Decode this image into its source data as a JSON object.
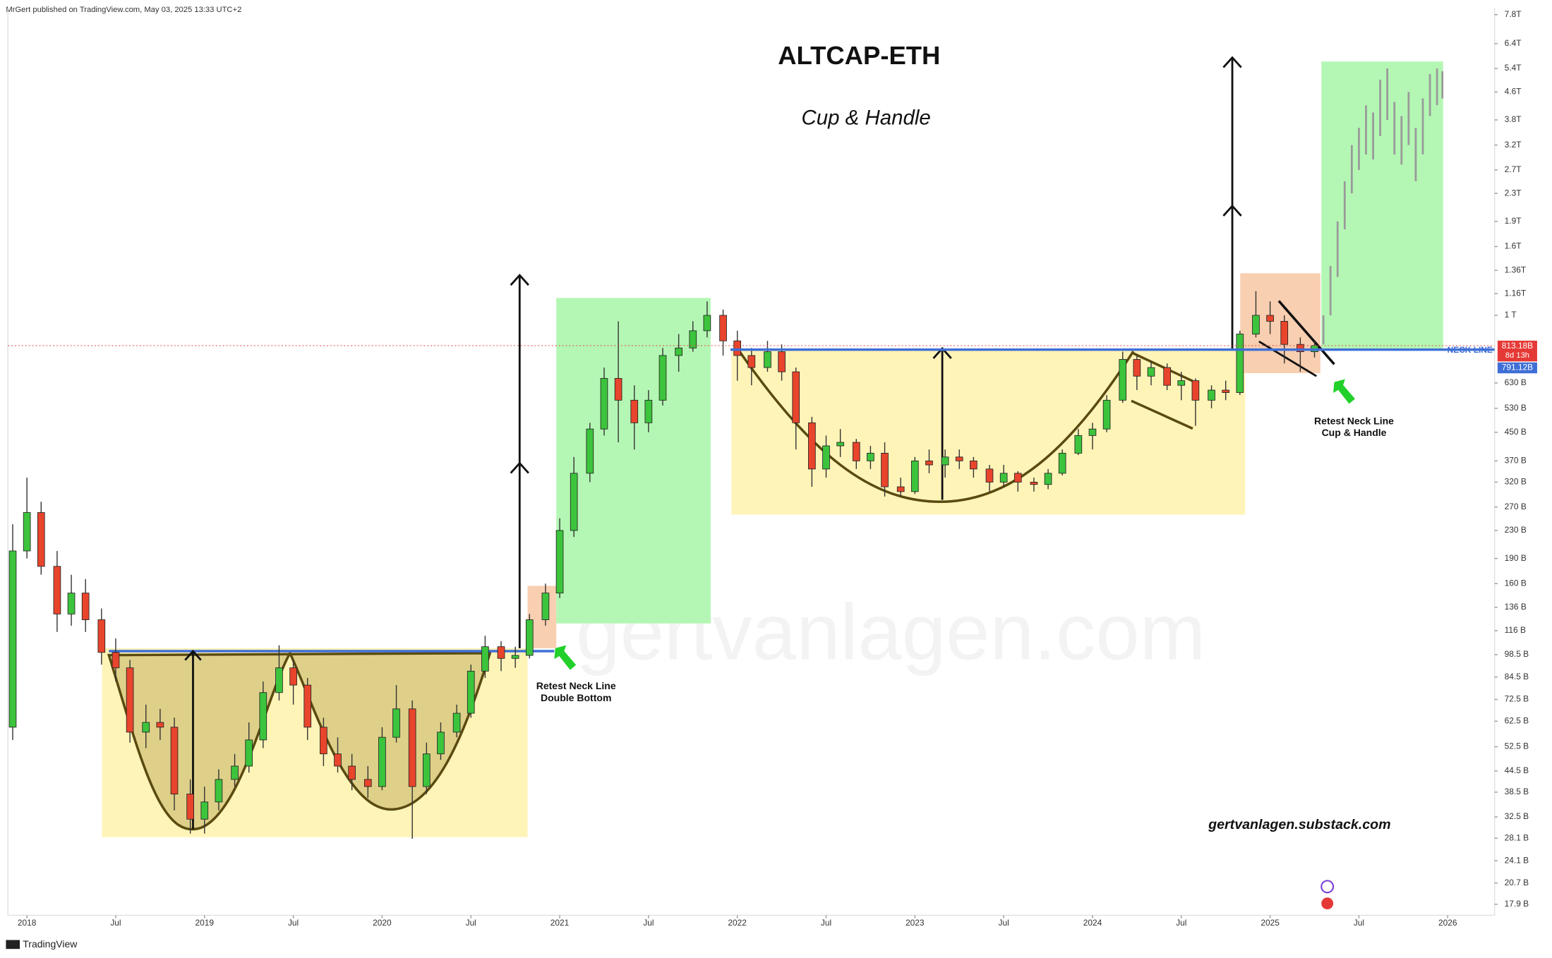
{
  "header": "MrGert published on TradingView.com, May 03, 2025 13:33 UTC+2",
  "footer": "TradingView",
  "watermark": "gertvanlagen.com",
  "chart_data": {
    "type": "candlestick",
    "title": "ALTCAP-ETH",
    "subtitle": "Cup & Handle",
    "log_scale": true,
    "grid": false,
    "colors": {
      "up": "#3cc43c",
      "down": "#e8452c",
      "wick": "#333333"
    },
    "x": [
      2017.92,
      2018.0,
      2018.08,
      2018.17,
      2018.25,
      2018.33,
      2018.42,
      2018.5,
      2018.58,
      2018.67,
      2018.75,
      2018.83,
      2018.92,
      2019.0,
      2019.08,
      2019.17,
      2019.25,
      2019.33,
      2019.42,
      2019.5,
      2019.58,
      2019.67,
      2019.75,
      2019.83,
      2019.92,
      2020.0,
      2020.08,
      2020.17,
      2020.25,
      2020.33,
      2020.42,
      2020.5,
      2020.58,
      2020.67,
      2020.75,
      2020.83,
      2020.92,
      2021.0,
      2021.08,
      2021.17,
      2021.25,
      2021.33,
      2021.42,
      2021.5,
      2021.58,
      2021.67,
      2021.75,
      2021.83,
      2021.92,
      2022.0,
      2022.08,
      2022.17,
      2022.25,
      2022.33,
      2022.42,
      2022.5,
      2022.58,
      2022.67,
      2022.75,
      2022.83,
      2022.92,
      2023.0,
      2023.08,
      2023.17,
      2023.25,
      2023.33,
      2023.42,
      2023.5,
      2023.58,
      2023.67,
      2023.75,
      2023.83,
      2023.92,
      2024.0,
      2024.08,
      2024.17,
      2024.25,
      2024.33,
      2024.42,
      2024.5,
      2024.58,
      2024.67,
      2024.75,
      2024.83,
      2024.92,
      2025.0,
      2025.08,
      2025.17,
      2025.25
    ],
    "open": [
      60,
      200,
      260,
      180,
      130,
      150,
      125,
      100,
      90,
      58,
      62,
      60,
      38,
      32,
      36,
      42,
      46,
      55,
      76,
      90,
      80,
      60,
      50,
      46,
      42,
      40,
      56,
      68,
      40,
      50,
      58,
      66,
      88,
      104,
      96,
      98,
      125,
      150,
      230,
      340,
      460,
      650,
      560,
      480,
      560,
      760,
      800,
      900,
      1000,
      840,
      760,
      700,
      780,
      680,
      480,
      350,
      410,
      420,
      370,
      390,
      310,
      300,
      370,
      360,
      380,
      370,
      350,
      320,
      340,
      320,
      315,
      340,
      390,
      440,
      460,
      560,
      740,
      660,
      700,
      620,
      640,
      560,
      600,
      590,
      880,
      1000,
      960,
      820,
      780
    ],
    "high": [
      240,
      330,
      280,
      200,
      170,
      165,
      135,
      110,
      95,
      70,
      68,
      64,
      42,
      40,
      45,
      50,
      62,
      82,
      105,
      95,
      84,
      64,
      56,
      50,
      46,
      60,
      80,
      72,
      54,
      62,
      70,
      92,
      112,
      108,
      104,
      130,
      160,
      250,
      380,
      480,
      700,
      960,
      620,
      600,
      800,
      880,
      960,
      1100,
      1040,
      900,
      800,
      840,
      820,
      700,
      500,
      440,
      460,
      430,
      410,
      420,
      330,
      380,
      400,
      400,
      400,
      380,
      360,
      360,
      345,
      330,
      350,
      400,
      460,
      480,
      580,
      780,
      760,
      730,
      720,
      680,
      650,
      620,
      640,
      900,
      1180,
      1100,
      1000,
      860,
      840
    ],
    "low": [
      55,
      190,
      170,
      115,
      120,
      115,
      92,
      82,
      54,
      52,
      55,
      34,
      29,
      29,
      34,
      40,
      44,
      52,
      72,
      70,
      55,
      46,
      44,
      39,
      37,
      39,
      54,
      28,
      38,
      48,
      56,
      64,
      84,
      88,
      90,
      96,
      120,
      145,
      220,
      320,
      440,
      420,
      400,
      450,
      540,
      680,
      780,
      860,
      760,
      640,
      620,
      680,
      640,
      400,
      310,
      330,
      380,
      350,
      350,
      290,
      290,
      295,
      340,
      330,
      350,
      330,
      300,
      310,
      300,
      300,
      305,
      335,
      385,
      400,
      450,
      550,
      600,
      620,
      600,
      560,
      470,
      530,
      560,
      580,
      860,
      880,
      720,
      680,
      750
    ],
    "close": [
      200,
      260,
      180,
      130,
      150,
      125,
      100,
      90,
      58,
      62,
      60,
      38,
      32,
      36,
      42,
      46,
      55,
      76,
      90,
      80,
      60,
      50,
      46,
      42,
      40,
      56,
      68,
      40,
      50,
      58,
      66,
      88,
      104,
      96,
      98,
      125,
      150,
      230,
      340,
      460,
      650,
      560,
      480,
      560,
      760,
      800,
      900,
      1000,
      840,
      760,
      700,
      780,
      680,
      480,
      350,
      410,
      420,
      370,
      390,
      310,
      300,
      370,
      360,
      380,
      370,
      350,
      320,
      340,
      320,
      315,
      340,
      390,
      440,
      460,
      560,
      740,
      660,
      700,
      620,
      640,
      560,
      600,
      590,
      880,
      1000,
      960,
      820,
      780,
      813.18
    ],
    "last_close_label": "813.18B",
    "countdown": "8d 13h",
    "projection": {
      "color": "#9a9a9a",
      "x": [
        2025.3,
        2025.34,
        2025.38,
        2025.42,
        2025.46,
        2025.5,
        2025.54,
        2025.58,
        2025.62,
        2025.66,
        2025.7,
        2025.74,
        2025.78,
        2025.82,
        2025.86,
        2025.9,
        2025.94,
        2025.97
      ],
      "low": [
        820,
        1000,
        1300,
        1800,
        2300,
        2700,
        3000,
        2900,
        3400,
        3800,
        3000,
        2800,
        3200,
        2500,
        3000,
        3900,
        4200,
        4400
      ],
      "high": [
        1000,
        1400,
        1900,
        2500,
        3200,
        3600,
        4200,
        4000,
        5000,
        5400,
        4300,
        3900,
        4600,
        3600,
        4400,
        5200,
        5400,
        5300
      ]
    },
    "neck_line": {
      "label": "NECK LINE",
      "value": 791.12,
      "value_label": "791.12B",
      "color": "#3f6fd6"
    },
    "annotations": {
      "double_bottom": [
        "Retest Neck Line",
        "Double Bottom"
      ],
      "cup_handle": [
        "Retest Neck Line",
        "Cup & Handle"
      ],
      "site": "gertvanlagen.substack.com"
    },
    "xlim": [
      2017.893,
      2026.264
    ],
    "ylim": [
      16.6,
      7940
    ],
    "xticks": [
      2018,
      {
        "value": 2018.5,
        "label": "Jul"
      },
      2019,
      {
        "value": 2019.5,
        "label": "Jul"
      },
      2020,
      {
        "value": 2020.5,
        "label": "Jul"
      },
      2021,
      {
        "value": 2021.5,
        "label": "Jul"
      },
      2022,
      {
        "value": 2022.5,
        "label": "Jul"
      },
      2023,
      {
        "value": 2023.5,
        "label": "Jul"
      },
      2024,
      {
        "value": 2024.5,
        "label": "Jul"
      },
      2025,
      {
        "value": 2025.5,
        "label": "Jul"
      },
      2026
    ],
    "yticks": [
      {
        "value": 7800,
        "label": "7.8T"
      },
      {
        "value": 6400,
        "label": "6.4T"
      },
      {
        "value": 5400,
        "label": "5.4T"
      },
      {
        "value": 4600,
        "label": "4.6T"
      },
      {
        "value": 3800,
        "label": "3.8T"
      },
      {
        "value": 3200,
        "label": "3.2T"
      },
      {
        "value": 2700,
        "label": "2.7T"
      },
      {
        "value": 2300,
        "label": "2.3T"
      },
      {
        "value": 1900,
        "label": "1.9T"
      },
      {
        "value": 1600,
        "label": "1.6T"
      },
      {
        "value": 1360,
        "label": "1.36T"
      },
      {
        "value": 1160,
        "label": "1.16T"
      },
      {
        "value": 1000,
        "label": "1 T"
      },
      {
        "value": 630,
        "label": "630 B"
      },
      {
        "value": 530,
        "label": "530 B"
      },
      {
        "value": 450,
        "label": "450 B"
      },
      {
        "value": 370,
        "label": "370 B"
      },
      {
        "value": 320,
        "label": "320 B"
      },
      {
        "value": 270,
        "label": "270 B"
      },
      {
        "value": 230,
        "label": "230 B"
      },
      {
        "value": 190,
        "label": "190 B"
      },
      {
        "value": 160,
        "label": "160 B"
      },
      {
        "value": 136,
        "label": "136 B"
      },
      {
        "value": 116,
        "label": "116 B"
      },
      {
        "value": 98.5,
        "label": "98.5 B"
      },
      {
        "value": 84.5,
        "label": "84.5 B"
      },
      {
        "value": 72.5,
        "label": "72.5 B"
      },
      {
        "value": 62.5,
        "label": "62.5 B"
      },
      {
        "value": 52.5,
        "label": "52.5 B"
      },
      {
        "value": 44.5,
        "label": "44.5 B"
      },
      {
        "value": 38.5,
        "label": "38.5 B"
      },
      {
        "value": 32.5,
        "label": "32.5 B"
      },
      {
        "value": 28.1,
        "label": "28.1 B"
      },
      {
        "value": 24.1,
        "label": "24.1 B"
      },
      {
        "value": 20.7,
        "label": "20.7 B"
      },
      {
        "value": 17.9,
        "label": "17.9 B"
      }
    ]
  }
}
